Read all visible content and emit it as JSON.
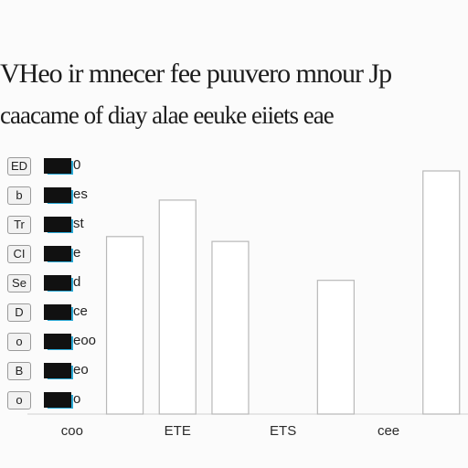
{
  "title": "VHeo ir mnecer fee puuvero mnour Jp",
  "subtitle": "caacame of diay alae eeuke eiiets eae",
  "legend": [
    {
      "key": "ED",
      "label": "0"
    },
    {
      "key": "b",
      "label": "es"
    },
    {
      "key": "Tr",
      "label": "st"
    },
    {
      "key": "CI",
      "label": "e"
    },
    {
      "key": "Se",
      "label": "d"
    },
    {
      "key": "D",
      "label": "ce"
    },
    {
      "key": "o",
      "label": "eoo"
    },
    {
      "key": "B",
      "label": "eo"
    },
    {
      "key": "o",
      "label": "o"
    }
  ],
  "colors": {
    "bar_fill": "#ffffff",
    "bar_stroke": "#b8b8b8",
    "swatch": "#111111",
    "swatch_accent": "#2aa9d6"
  },
  "chart_data": {
    "type": "bar",
    "title": "VHeo ir mnecer fee puuvero mnour Jp",
    "subtitle": "caacame of diay alae eeuke eiiets eae",
    "xlabel": "",
    "ylabel": "",
    "ylim": [
      0,
      100
    ],
    "grid": false,
    "legend_position": "left",
    "categories": [
      "coo",
      "",
      "ETE",
      "",
      "ETS",
      "",
      "cee",
      ""
    ],
    "values": [
      0,
      73,
      88,
      71,
      0,
      55,
      0,
      100
    ]
  }
}
